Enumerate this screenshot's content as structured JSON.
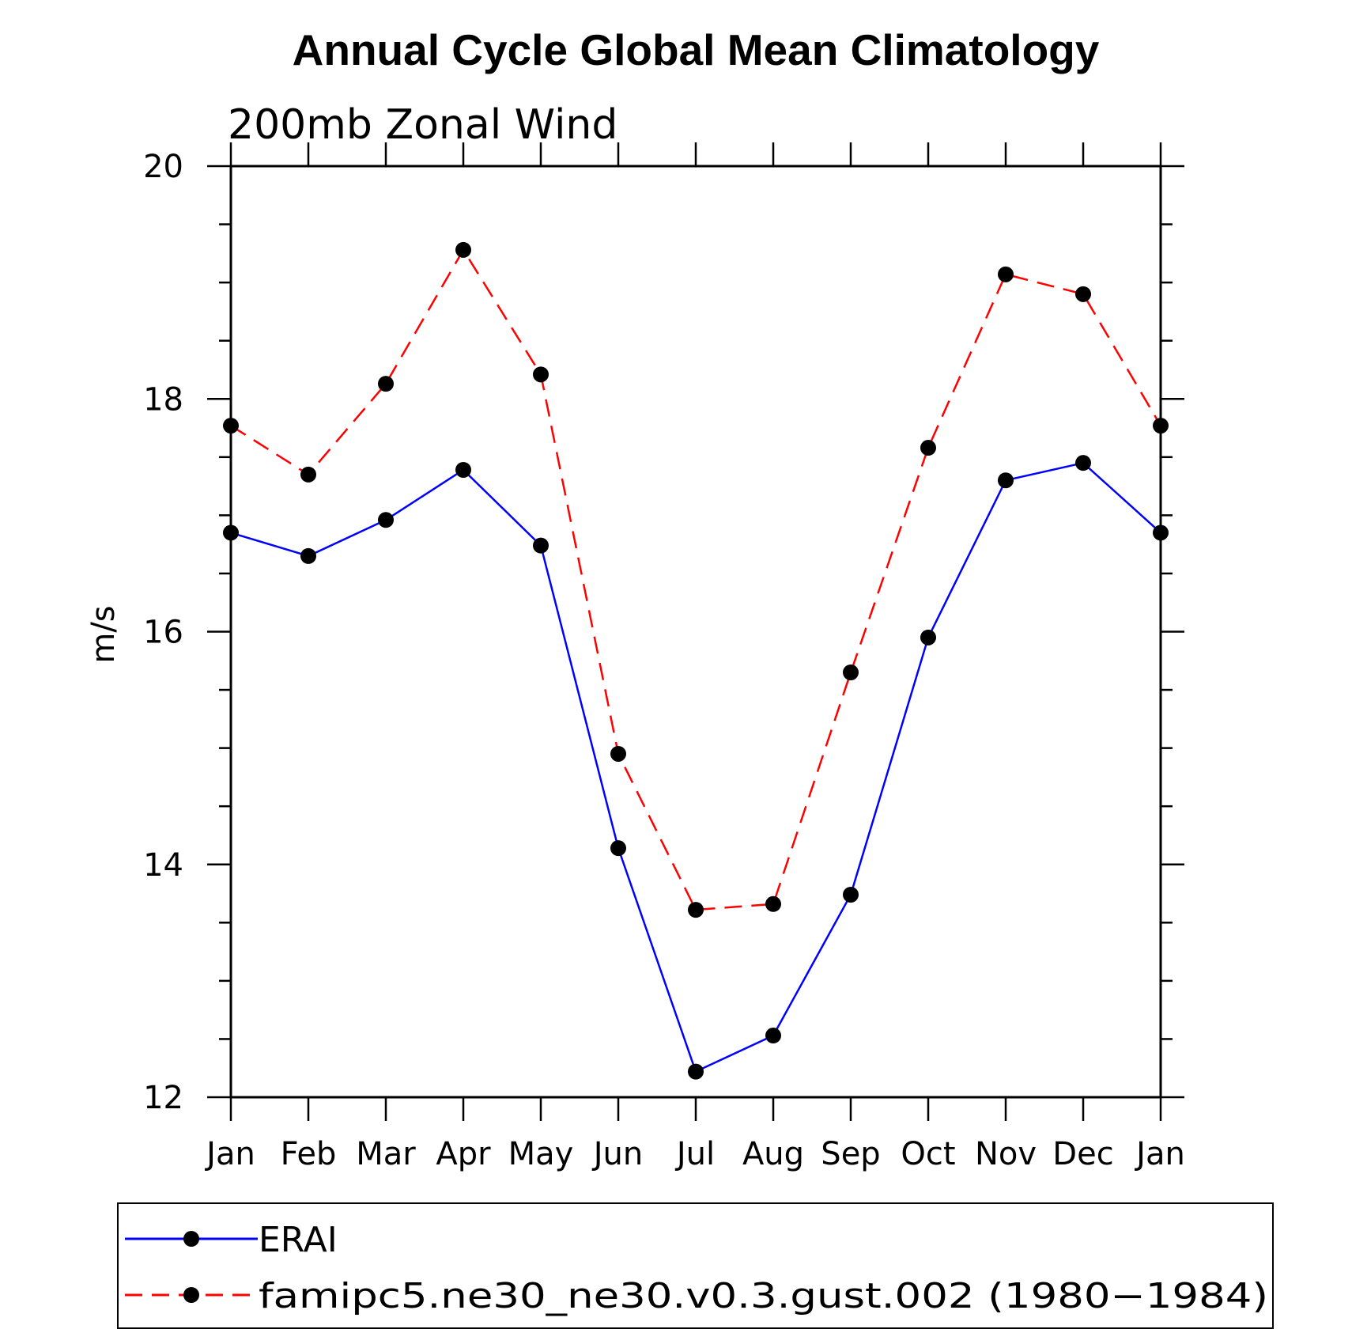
{
  "chart_data": {
    "type": "line",
    "title": "Annual Cycle Global Mean Climatology",
    "subtitle": "200mb Zonal Wind",
    "xlabel": "",
    "ylabel": "m/s",
    "categories": [
      "Jan",
      "Feb",
      "Mar",
      "Apr",
      "May",
      "Jun",
      "Jul",
      "Aug",
      "Sep",
      "Oct",
      "Nov",
      "Dec",
      "Jan"
    ],
    "ylim": [
      12,
      20
    ],
    "yticks": [
      12,
      14,
      16,
      18,
      20
    ],
    "yticks_label": [
      "12",
      "14",
      "16",
      "18",
      "20"
    ],
    "grid": false,
    "legend_position": "bottom",
    "series": [
      {
        "name": "ERAI",
        "color": "#0000ff",
        "dash": "solid",
        "marker": "filled-circle",
        "values": [
          16.85,
          16.65,
          16.96,
          17.39,
          16.74,
          14.14,
          12.22,
          12.53,
          13.74,
          15.95,
          17.3,
          17.45,
          16.85
        ]
      },
      {
        "name": "famipc5.ne30_ne30.v0.3.gust.002 (1980−1984)",
        "color": "#ff0000",
        "dash": "dashed",
        "marker": "filled-circle",
        "values": [
          17.77,
          17.35,
          18.13,
          19.28,
          18.21,
          14.95,
          13.61,
          13.66,
          15.65,
          17.58,
          19.07,
          18.9,
          17.77
        ]
      }
    ]
  }
}
